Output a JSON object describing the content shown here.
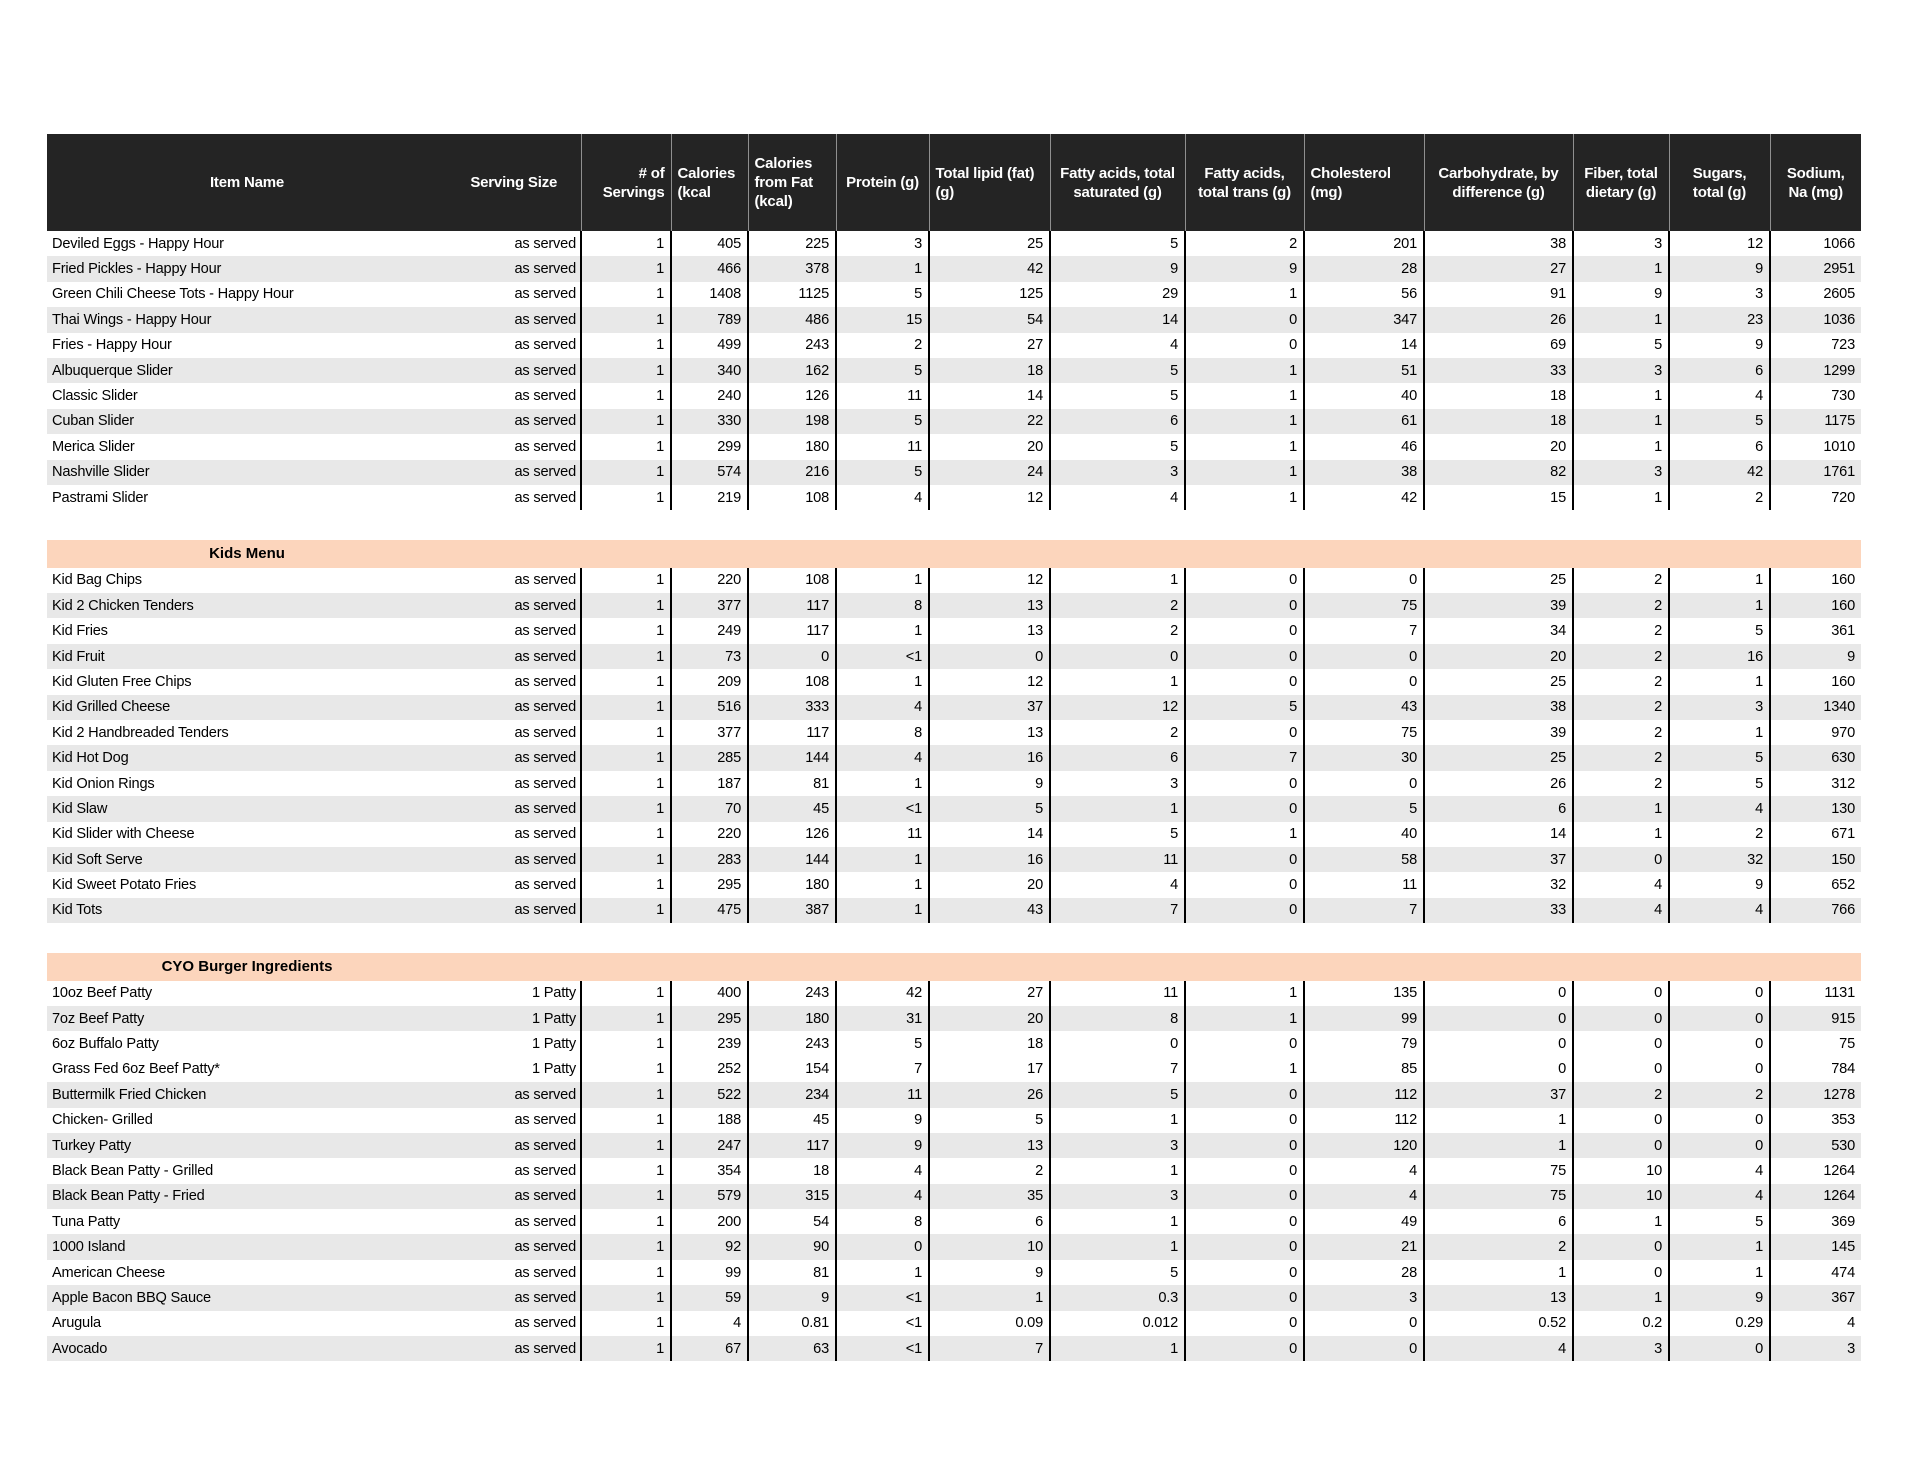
{
  "colors": {
    "page_bg": "#ffffff",
    "header_bg": "#242424",
    "header_text": "#ffffff",
    "row_white": "#ffffff",
    "row_gray": "#e8e8e8",
    "section_band_bg": "#fcd5bc",
    "grid_border": "#000000",
    "header_divider": "#8f8f8f"
  },
  "table": {
    "columns": [
      {
        "id": "item",
        "label": "Item Name"
      },
      {
        "id": "serving_size",
        "label": "Serving Size"
      },
      {
        "id": "servings",
        "label": "# of Servings"
      },
      {
        "id": "calories",
        "label": "Calories (kcal"
      },
      {
        "id": "calories_from_fat",
        "label": "Calories from Fat (kcal)"
      },
      {
        "id": "protein",
        "label": "Protein (g)"
      },
      {
        "id": "total_lipid",
        "label": "Total lipid (fat) (g)"
      },
      {
        "id": "sat_fat",
        "label": "Fatty acids, total saturated (g)"
      },
      {
        "id": "trans_fat",
        "label": "Fatty acids, total trans (g)"
      },
      {
        "id": "cholesterol",
        "label": "Cholesterol (mg)"
      },
      {
        "id": "carbohydrate",
        "label": "Carbohydrate, by difference (g)"
      },
      {
        "id": "fiber",
        "label": "Fiber, total dietary (g)"
      },
      {
        "id": "sugars",
        "label": "Sugars, total (g)"
      },
      {
        "id": "sodium",
        "label": "Sodium, Na (mg)"
      }
    ],
    "sections": [
      {
        "title": null,
        "shaded_rows": [
          1,
          3,
          5,
          7,
          9
        ],
        "rows": [
          [
            "Deviled Eggs - Happy Hour",
            "as served",
            "1",
            "405",
            "225",
            "3",
            "25",
            "5",
            "2",
            "201",
            "38",
            "3",
            "12",
            "1066"
          ],
          [
            "Fried Pickles - Happy Hour",
            "as served",
            "1",
            "466",
            "378",
            "1",
            "42",
            "9",
            "9",
            "28",
            "27",
            "1",
            "9",
            "2951"
          ],
          [
            "Green Chili Cheese Tots - Happy Hour",
            "as served",
            "1",
            "1408",
            "1125",
            "5",
            "125",
            "29",
            "1",
            "56",
            "91",
            "9",
            "3",
            "2605"
          ],
          [
            "Thai Wings - Happy Hour",
            "as served",
            "1",
            "789",
            "486",
            "15",
            "54",
            "14",
            "0",
            "347",
            "26",
            "1",
            "23",
            "1036"
          ],
          [
            "Fries - Happy Hour",
            "as served",
            "1",
            "499",
            "243",
            "2",
            "27",
            "4",
            "0",
            "14",
            "69",
            "5",
            "9",
            "723"
          ],
          [
            "Albuquerque Slider",
            "as served",
            "1",
            "340",
            "162",
            "5",
            "18",
            "5",
            "1",
            "51",
            "33",
            "3",
            "6",
            "1299"
          ],
          [
            "Classic Slider",
            "as served",
            "1",
            "240",
            "126",
            "11",
            "14",
            "5",
            "1",
            "40",
            "18",
            "1",
            "4",
            "730"
          ],
          [
            "Cuban Slider",
            "as served",
            "1",
            "330",
            "198",
            "5",
            "22",
            "6",
            "1",
            "61",
            "18",
            "1",
            "5",
            "1175"
          ],
          [
            "Merica Slider",
            "as served",
            "1",
            "299",
            "180",
            "11",
            "20",
            "5",
            "1",
            "46",
            "20",
            "1",
            "6",
            "1010"
          ],
          [
            "Nashville Slider",
            "as served",
            "1",
            "574",
            "216",
            "5",
            "24",
            "3",
            "1",
            "38",
            "82",
            "3",
            "42",
            "1761"
          ],
          [
            "Pastrami Slider",
            "as served",
            "1",
            "219",
            "108",
            "4",
            "12",
            "4",
            "1",
            "42",
            "15",
            "1",
            "2",
            "720"
          ]
        ]
      },
      {
        "title": "Kids Menu",
        "shaded_rows": [
          1,
          3,
          5,
          7,
          9,
          11,
          13
        ],
        "rows": [
          [
            "Kid Bag Chips",
            "as served",
            "1",
            "220",
            "108",
            "1",
            "12",
            "1",
            "0",
            "0",
            "25",
            "2",
            "1",
            "160"
          ],
          [
            "Kid 2 Chicken Tenders",
            "as served",
            "1",
            "377",
            "117",
            "8",
            "13",
            "2",
            "0",
            "75",
            "39",
            "2",
            "1",
            "160"
          ],
          [
            "Kid Fries",
            "as served",
            "1",
            "249",
            "117",
            "1",
            "13",
            "2",
            "0",
            "7",
            "34",
            "2",
            "5",
            "361"
          ],
          [
            "Kid Fruit",
            "as served",
            "1",
            "73",
            "0",
            "<1",
            "0",
            "0",
            "0",
            "0",
            "20",
            "2",
            "16",
            "9"
          ],
          [
            "Kid Gluten Free Chips",
            "as served",
            "1",
            "209",
            "108",
            "1",
            "12",
            "1",
            "0",
            "0",
            "25",
            "2",
            "1",
            "160"
          ],
          [
            "Kid Grilled Cheese",
            "as served",
            "1",
            "516",
            "333",
            "4",
            "37",
            "12",
            "5",
            "43",
            "38",
            "2",
            "3",
            "1340"
          ],
          [
            "Kid 2 Handbreaded Tenders",
            "as served",
            "1",
            "377",
            "117",
            "8",
            "13",
            "2",
            "0",
            "75",
            "39",
            "2",
            "1",
            "970"
          ],
          [
            "Kid Hot Dog",
            "as served",
            "1",
            "285",
            "144",
            "4",
            "16",
            "6",
            "7",
            "30",
            "25",
            "2",
            "5",
            "630"
          ],
          [
            "Kid Onion Rings",
            "as served",
            "1",
            "187",
            "81",
            "1",
            "9",
            "3",
            "0",
            "0",
            "26",
            "2",
            "5",
            "312"
          ],
          [
            "Kid Slaw",
            "as served",
            "1",
            "70",
            "45",
            "<1",
            "5",
            "1",
            "0",
            "5",
            "6",
            "1",
            "4",
            "130"
          ],
          [
            "Kid Slider with Cheese",
            "as served",
            "1",
            "220",
            "126",
            "11",
            "14",
            "5",
            "1",
            "40",
            "14",
            "1",
            "2",
            "671"
          ],
          [
            "Kid Soft Serve",
            "as served",
            "1",
            "283",
            "144",
            "1",
            "16",
            "11",
            "0",
            "58",
            "37",
            "0",
            "32",
            "150"
          ],
          [
            "Kid Sweet Potato Fries",
            "as served",
            "1",
            "295",
            "180",
            "1",
            "20",
            "4",
            "0",
            "11",
            "32",
            "4",
            "9",
            "652"
          ],
          [
            "Kid Tots",
            "as served",
            "1",
            "475",
            "387",
            "1",
            "43",
            "7",
            "0",
            "7",
            "33",
            "4",
            "4",
            "766"
          ]
        ]
      },
      {
        "title": "CYO Burger Ingredients",
        "shaded_rows": [
          1,
          4,
          6,
          8,
          10,
          12,
          14
        ],
        "rows": [
          [
            "10oz Beef Patty",
            "1 Patty",
            "1",
            "400",
            "243",
            "42",
            "27",
            "11",
            "1",
            "135",
            "0",
            "0",
            "0",
            "1131"
          ],
          [
            "7oz Beef Patty",
            "1 Patty",
            "1",
            "295",
            "180",
            "31",
            "20",
            "8",
            "1",
            "99",
            "0",
            "0",
            "0",
            "915"
          ],
          [
            "6oz Buffalo Patty",
            "1 Patty",
            "1",
            "239",
            "243",
            "5",
            "18",
            "0",
            "0",
            "79",
            "0",
            "0",
            "0",
            "75"
          ],
          [
            "Grass Fed 6oz Beef Patty*",
            "1 Patty",
            "1",
            "252",
            "154",
            "7",
            "17",
            "7",
            "1",
            "85",
            "0",
            "0",
            "0",
            "784"
          ],
          [
            "Buttermilk Fried Chicken",
            "as served",
            "1",
            "522",
            "234",
            "11",
            "26",
            "5",
            "0",
            "112",
            "37",
            "2",
            "2",
            "1278"
          ],
          [
            "Chicken- Grilled",
            "as served",
            "1",
            "188",
            "45",
            "9",
            "5",
            "1",
            "0",
            "112",
            "1",
            "0",
            "0",
            "353"
          ],
          [
            "Turkey Patty",
            "as served",
            "1",
            "247",
            "117",
            "9",
            "13",
            "3",
            "0",
            "120",
            "1",
            "0",
            "0",
            "530"
          ],
          [
            "Black Bean Patty - Grilled",
            "as served",
            "1",
            "354",
            "18",
            "4",
            "2",
            "1",
            "0",
            "4",
            "75",
            "10",
            "4",
            "1264"
          ],
          [
            "Black Bean Patty - Fried",
            "as served",
            "1",
            "579",
            "315",
            "4",
            "35",
            "3",
            "0",
            "4",
            "75",
            "10",
            "4",
            "1264"
          ],
          [
            "Tuna Patty",
            "as served",
            "1",
            "200",
            "54",
            "8",
            "6",
            "1",
            "0",
            "49",
            "6",
            "1",
            "5",
            "369"
          ],
          [
            "1000 Island",
            "as served",
            "1",
            "92",
            "90",
            "0",
            "10",
            "1",
            "0",
            "21",
            "2",
            "0",
            "1",
            "145"
          ],
          [
            "American Cheese",
            "as served",
            "1",
            "99",
            "81",
            "1",
            "9",
            "5",
            "0",
            "28",
            "1",
            "0",
            "1",
            "474"
          ],
          [
            "Apple Bacon BBQ Sauce",
            "as served",
            "1",
            "59",
            "9",
            "<1",
            "1",
            "0.3",
            "0",
            "3",
            "13",
            "1",
            "9",
            "367"
          ],
          [
            "Arugula",
            "as served",
            "1",
            "4",
            "0.81",
            "<1",
            "0.09",
            "0.012",
            "0",
            "0",
            "0.52",
            "0.2",
            "0.29",
            "4"
          ],
          [
            "Avocado",
            "as served",
            "1",
            "67",
            "63",
            "<1",
            "7",
            "1",
            "0",
            "0",
            "4",
            "3",
            "0",
            "3"
          ]
        ]
      }
    ]
  }
}
